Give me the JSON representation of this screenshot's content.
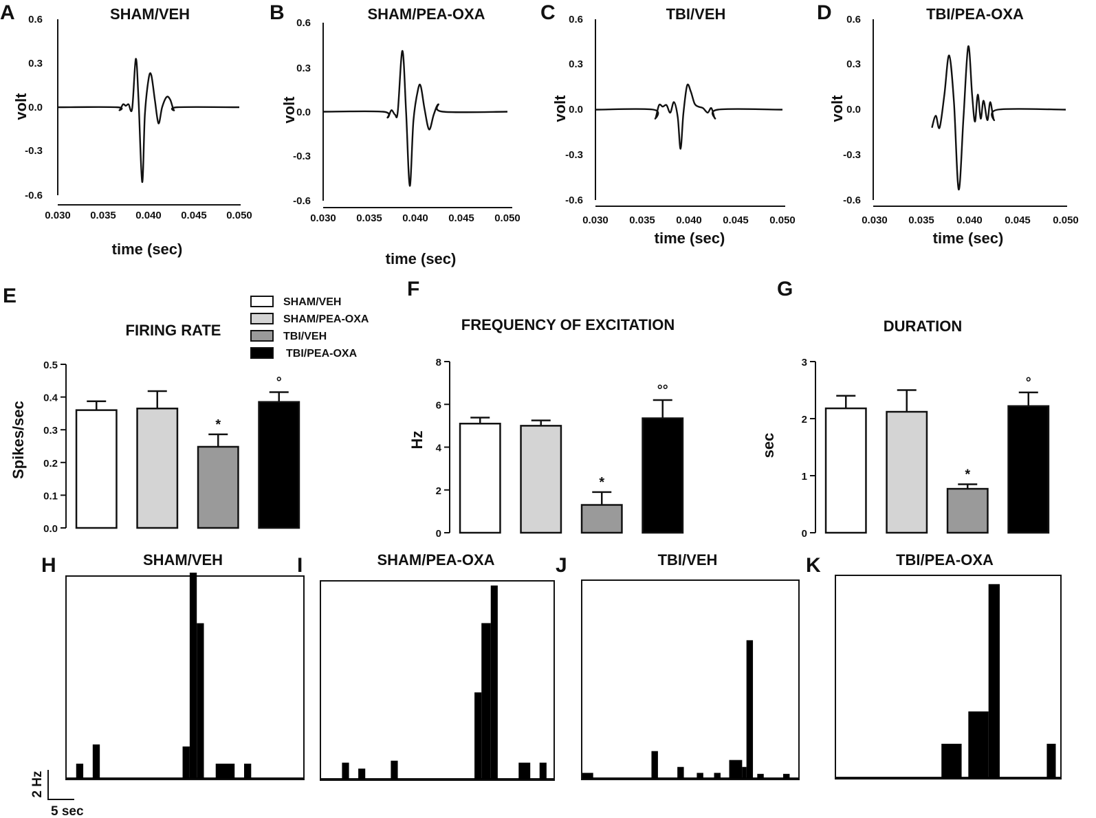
{
  "colors": {
    "sham_veh": "#ffffff",
    "sham_pea_oxa": "#d4d4d4",
    "tbi_veh": "#9a9a9a",
    "tbi_pea_oxa": "#000000",
    "ink": "#111111"
  },
  "waveforms": {
    "xlabel": "time (sec)",
    "ylabel": "volt",
    "xticks": [
      "0.030",
      "0.035",
      "0.040",
      "0.045",
      "0.050"
    ],
    "yticks": [
      "0.6",
      "0.3",
      "0.0",
      "-0.3",
      "-0.6"
    ],
    "panels": [
      {
        "letter": "A",
        "title": "SHAM/VEH",
        "chart_data": {
          "type": "line",
          "xlim": [
            0.03,
            0.05
          ],
          "ylim": [
            -0.6,
            0.6
          ],
          "points": [
            [
              0.03,
              0
            ],
            [
              0.0365,
              0
            ],
            [
              0.0368,
              -0.02
            ],
            [
              0.0372,
              0.02
            ],
            [
              0.0375,
              0.01
            ],
            [
              0.0378,
              0.02
            ],
            [
              0.0382,
              -0.01
            ],
            [
              0.0386,
              0.33
            ],
            [
              0.0389,
              0.05
            ],
            [
              0.0393,
              -0.51
            ],
            [
              0.0396,
              -0.05
            ],
            [
              0.04,
              0.19
            ],
            [
              0.0403,
              0.22
            ],
            [
              0.0407,
              0.05
            ],
            [
              0.0411,
              -0.11
            ],
            [
              0.0415,
              0
            ],
            [
              0.042,
              0.07
            ],
            [
              0.0424,
              0.05
            ],
            [
              0.0428,
              -0.02
            ],
            [
              0.0432,
              0
            ],
            [
              0.05,
              0
            ]
          ]
        }
      },
      {
        "letter": "B",
        "title": "SHAM/PEA-OXA",
        "chart_data": {
          "type": "line",
          "xlim": [
            0.03,
            0.05
          ],
          "ylim": [
            -0.6,
            0.6
          ],
          "points": [
            [
              0.03,
              0
            ],
            [
              0.0365,
              0
            ],
            [
              0.037,
              -0.04
            ],
            [
              0.0374,
              0.01
            ],
            [
              0.0378,
              -0.02
            ],
            [
              0.0381,
              0
            ],
            [
              0.0386,
              0.41
            ],
            [
              0.039,
              0
            ],
            [
              0.0394,
              -0.5
            ],
            [
              0.0398,
              -0.06
            ],
            [
              0.0403,
              0.15
            ],
            [
              0.0406,
              0.17
            ],
            [
              0.041,
              0.02
            ],
            [
              0.0415,
              -0.12
            ],
            [
              0.042,
              -0.02
            ],
            [
              0.0425,
              0.05
            ],
            [
              0.043,
              0
            ],
            [
              0.05,
              0
            ]
          ]
        }
      },
      {
        "letter": "C",
        "title": "TBI/VEH",
        "chart_data": {
          "type": "line",
          "xlim": [
            0.03,
            0.05
          ],
          "ylim": [
            -0.6,
            0.6
          ],
          "points": [
            [
              0.03,
              0
            ],
            [
              0.0362,
              0
            ],
            [
              0.0364,
              -0.06
            ],
            [
              0.0368,
              0.03
            ],
            [
              0.0372,
              0.02
            ],
            [
              0.0376,
              0.03
            ],
            [
              0.038,
              -0.02
            ],
            [
              0.0384,
              0.05
            ],
            [
              0.0388,
              -0.05
            ],
            [
              0.0391,
              -0.26
            ],
            [
              0.0394,
              -0.03
            ],
            [
              0.0398,
              0.16
            ],
            [
              0.0402,
              0.12
            ],
            [
              0.0406,
              0.04
            ],
            [
              0.041,
              0.02
            ],
            [
              0.0415,
              0.01
            ],
            [
              0.042,
              -0.02
            ],
            [
              0.0424,
              0.01
            ],
            [
              0.0428,
              -0.06
            ],
            [
              0.0431,
              0
            ],
            [
              0.05,
              0
            ]
          ]
        }
      },
      {
        "letter": "D",
        "title": "TBI/PEA-OXA",
        "chart_data": {
          "type": "line",
          "xlim": [
            0.03,
            0.05
          ],
          "ylim": [
            -0.6,
            0.6
          ],
          "points": [
            [
              0.036,
              -0.12
            ],
            [
              0.0364,
              -0.04
            ],
            [
              0.0368,
              -0.12
            ],
            [
              0.0373,
              0.1
            ],
            [
              0.0378,
              0.36
            ],
            [
              0.0383,
              0.05
            ],
            [
              0.0388,
              -0.53
            ],
            [
              0.0393,
              -0.05
            ],
            [
              0.0398,
              0.42
            ],
            [
              0.0402,
              0.1
            ],
            [
              0.0405,
              -0.08
            ],
            [
              0.0408,
              0.1
            ],
            [
              0.0411,
              -0.06
            ],
            [
              0.0414,
              0.06
            ],
            [
              0.0418,
              -0.07
            ],
            [
              0.0421,
              0.05
            ],
            [
              0.0425,
              -0.07
            ],
            [
              0.0429,
              0
            ],
            [
              0.05,
              0
            ]
          ]
        }
      }
    ]
  },
  "legend": {
    "items": [
      "SHAM/VEH",
      "SHAM/PEA-OXA",
      "TBI/VEH",
      "TBI/PEA-OXA"
    ]
  },
  "bar_charts": [
    {
      "letter": "E",
      "title": "FIRING RATE",
      "chart_data": {
        "type": "bar",
        "ylabel": "Spikes/sec",
        "ylim": [
          0,
          0.5
        ],
        "yticks": [
          "0.0",
          "0.1",
          "0.2",
          "0.3",
          "0.4",
          "0.5"
        ],
        "categories": [
          "SHAM/VEH",
          "SHAM/PEA-OXA",
          "TBI/VEH",
          "TBI/PEA-OXA"
        ],
        "values": [
          0.36,
          0.365,
          0.248,
          0.385
        ],
        "errors": [
          0.027,
          0.053,
          0.038,
          0.03
        ],
        "annotations": [
          "",
          "",
          "*",
          "°"
        ]
      }
    },
    {
      "letter": "F",
      "title": "FREQUENCY OF EXCITATION",
      "chart_data": {
        "type": "bar",
        "ylabel": "Hz",
        "ylim": [
          0,
          8
        ],
        "yticks": [
          "0",
          "2",
          "4",
          "6",
          "8"
        ],
        "categories": [
          "SHAM/VEH",
          "SHAM/PEA-OXA",
          "TBI/VEH",
          "TBI/PEA-OXA"
        ],
        "values": [
          5.1,
          5.0,
          1.3,
          5.35
        ],
        "errors": [
          0.28,
          0.25,
          0.6,
          0.85
        ],
        "annotations": [
          "",
          "",
          "*",
          "°°"
        ]
      }
    },
    {
      "letter": "G",
      "title": "DURATION",
      "chart_data": {
        "type": "bar",
        "ylabel": "sec",
        "ylim": [
          0,
          3
        ],
        "yticks": [
          "0",
          "1",
          "2",
          "3"
        ],
        "categories": [
          "SHAM/VEH",
          "SHAM/PEA-OXA",
          "TBI/VEH",
          "TBI/PEA-OXA"
        ],
        "values": [
          2.18,
          2.12,
          0.77,
          2.22
        ],
        "errors": [
          0.22,
          0.38,
          0.08,
          0.24
        ],
        "annotations": [
          "",
          "",
          "*",
          "°"
        ]
      }
    }
  ],
  "histograms": {
    "scale_y_label": "2 Hz",
    "scale_x_label": "5 sec",
    "panels": [
      {
        "letter": "H",
        "title": "SHAM/VEH",
        "chart_data": {
          "type": "bar",
          "xlim": [
            0,
            100
          ],
          "ylim": [
            0,
            10
          ],
          "bins": [
            [
              4,
              7,
              0.75
            ],
            [
              11,
              14,
              1.7
            ],
            [
              49,
              52,
              1.6
            ],
            [
              52,
              55,
              10.2
            ],
            [
              55,
              58,
              7.7
            ],
            [
              63,
              71,
              0.75
            ],
            [
              75,
              78,
              0.75
            ]
          ]
        }
      },
      {
        "letter": "I",
        "title": "SHAM/PEA-OXA",
        "chart_data": {
          "type": "bar",
          "xlim": [
            0,
            100
          ],
          "ylim": [
            0,
            10
          ],
          "bins": [
            [
              9,
              12,
              0.85
            ],
            [
              16,
              19,
              0.55
            ],
            [
              30,
              33,
              0.95
            ],
            [
              66,
              69,
              4.4
            ],
            [
              69,
              73,
              7.9
            ],
            [
              73,
              76,
              9.8
            ],
            [
              85,
              90,
              0.85
            ],
            [
              94,
              97,
              0.85
            ]
          ]
        }
      },
      {
        "letter": "J",
        "title": "TBI/VEH",
        "chart_data": {
          "type": "bar",
          "xlim": [
            0,
            100
          ],
          "ylim": [
            0,
            10
          ],
          "bins": [
            [
              0,
              5,
              0.3
            ],
            [
              32,
              35,
              1.4
            ],
            [
              44,
              47,
              0.6
            ],
            [
              53,
              56,
              0.3
            ],
            [
              61,
              64,
              0.3
            ],
            [
              68,
              74,
              0.95
            ],
            [
              74,
              76,
              0.6
            ],
            [
              76,
              79,
              7.0
            ],
            [
              81,
              84,
              0.25
            ],
            [
              93,
              96,
              0.25
            ]
          ]
        }
      },
      {
        "letter": "K",
        "title": "TBI/PEA-OXA",
        "chart_data": {
          "type": "bar",
          "xlim": [
            0,
            100
          ],
          "ylim": [
            0,
            10
          ],
          "bins": [
            [
              47,
              56,
              1.7
            ],
            [
              59,
              68,
              3.3
            ],
            [
              68,
              73,
              9.6
            ],
            [
              94,
              98,
              1.7
            ]
          ]
        }
      }
    ]
  }
}
